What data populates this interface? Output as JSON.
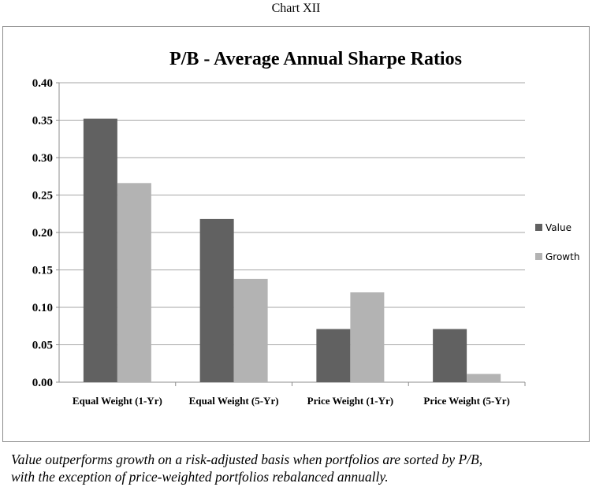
{
  "figure_label": "Chart XII",
  "caption": [
    "Value outperforms growth on a risk-adjusted basis when portfolios are sorted by P/B,",
    "with the exception of price-weighted portfolios rebalanced annually."
  ],
  "colors": {
    "value": "#616161",
    "growth": "#b3b3b3",
    "grid": "#a6a6a6"
  },
  "chart_data": {
    "type": "bar",
    "title": "P/B - Average Annual Sharpe Ratios",
    "categories": [
      "Equal Weight (1-Yr)",
      "Equal Weight (5-Yr)",
      "Price Weight (1-Yr)",
      "Price Weight (5-Yr)"
    ],
    "series": [
      {
        "name": "Value",
        "values": [
          0.352,
          0.218,
          0.071,
          0.071
        ]
      },
      {
        "name": "Growth",
        "values": [
          0.266,
          0.138,
          0.12,
          0.011
        ]
      }
    ],
    "y_ticks": [
      "0.00",
      "0.05",
      "0.10",
      "0.15",
      "0.20",
      "0.25",
      "0.30",
      "0.35",
      "0.40"
    ],
    "ylim": [
      0,
      0.4
    ],
    "grid": true,
    "legend_position": "right"
  }
}
